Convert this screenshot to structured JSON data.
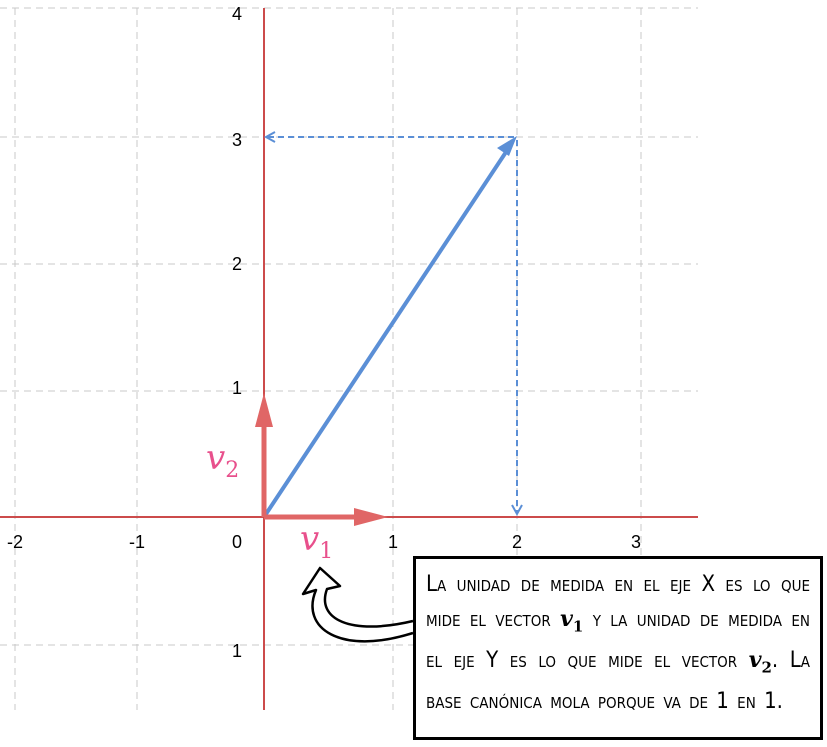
{
  "x_ticks": [
    "-2",
    "-1",
    "0",
    "1",
    "2",
    "3"
  ],
  "y_ticks": [
    "1",
    "2",
    "3",
    "4"
  ],
  "y_tick_below": "1",
  "vectors": {
    "v1": {
      "symbol": "v",
      "sub": "1",
      "x": 1,
      "y": 0
    },
    "v2": {
      "symbol": "v",
      "sub": "2",
      "x": 0,
      "y": 1
    },
    "main": {
      "x": 2,
      "y": 3
    }
  },
  "colors": {
    "axis": "#cc4b4b",
    "basis": "#e06666",
    "main": "#5b8fd6",
    "grid": "#c8c8c8",
    "label": "#e8508c"
  },
  "note": {
    "part1": "La unidad de medida en el eje X es lo que mide el vector ",
    "v1": "v",
    "v1_sub": "1",
    "part2": " y la unidad de medida en el eje Y es lo que mide el vector ",
    "v2": "v",
    "v2_sub": "2",
    "part3": ". La base canónica mola porque va de 1 en 1."
  }
}
